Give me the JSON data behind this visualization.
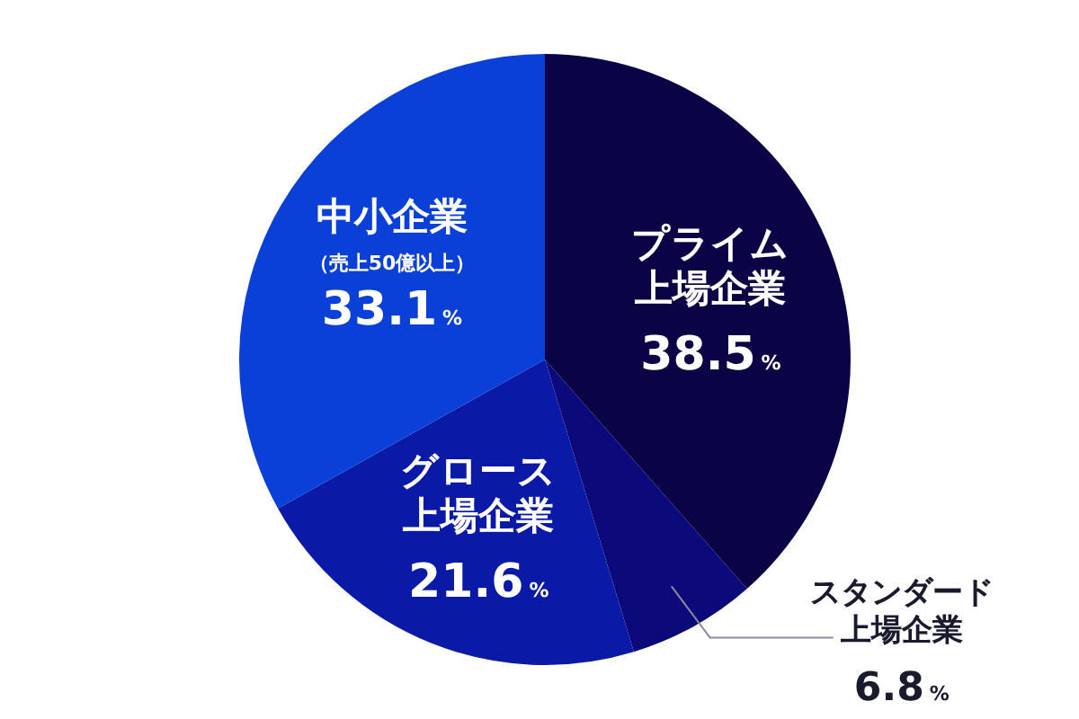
{
  "chart_data": {
    "type": "pie",
    "categories": [
      "プライム上場企業",
      "スタンダード上場企業",
      "グロース上場企業",
      "中小企業（売上50億以上）"
    ],
    "values": [
      38.5,
      6.8,
      21.6,
      33.1
    ],
    "colors": [
      "#0a0346",
      "#0c0a7a",
      "#0a1aa6",
      "#0a3fd8"
    ],
    "value_labels": [
      "38.5%",
      "6.8%",
      "21.6%",
      "33.1%"
    ]
  }
}
